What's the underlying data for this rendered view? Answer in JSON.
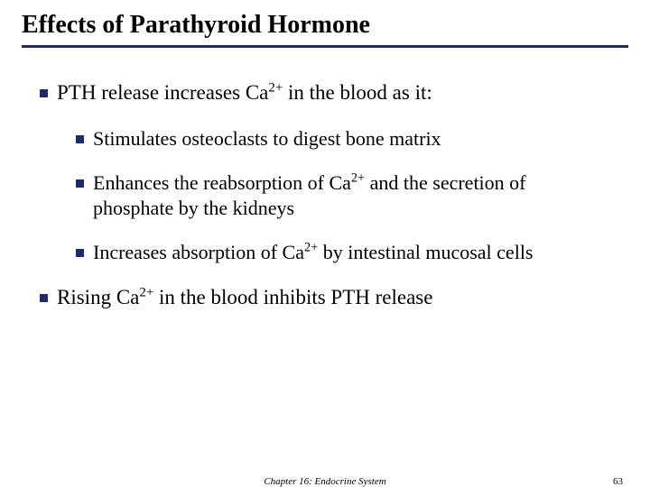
{
  "title": "Effects of Parathyroid Hormone",
  "colors": {
    "rule": "#1e2a6e",
    "bullet": "#1e2a6e",
    "text": "#000000",
    "background": "#ffffff"
  },
  "typography": {
    "title_fontsize": 28,
    "lvl1_fontsize": 23,
    "lvl2_fontsize": 22,
    "footer_fontsize": 11,
    "family": "Times New Roman"
  },
  "bullets": {
    "lvl1": [
      {
        "html": "PTH release increases Ca<sup>2+</sup> in the blood as it:"
      },
      {
        "html": "Rising Ca<sup>2+</sup> in the blood inhibits PTH release"
      }
    ],
    "lvl2": [
      {
        "html": "Stimulates osteoclasts to digest bone matrix"
      },
      {
        "html": "Enhances the reabsorption of Ca<sup>2+</sup> and the secretion of phosphate by the kidneys"
      },
      {
        "html": "Increases absorption of Ca<sup>2+</sup> by intestinal mucosal cells"
      }
    ]
  },
  "footer": {
    "chapter": "Chapter 16: Endocrine System",
    "page": "63"
  }
}
